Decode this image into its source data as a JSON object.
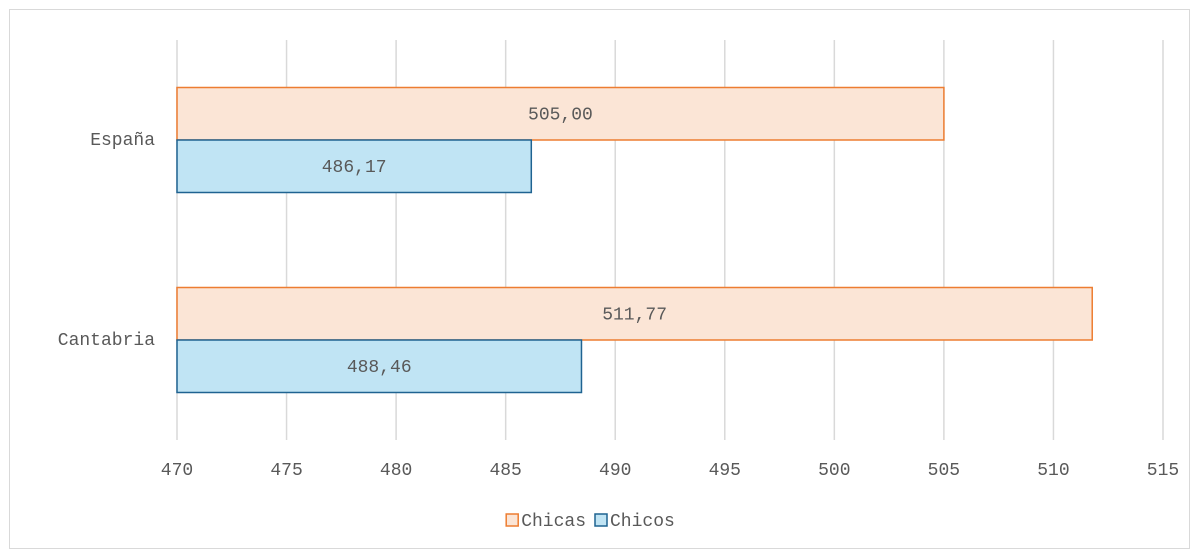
{
  "chart_data": {
    "type": "barh",
    "categories": [
      "España",
      "Cantabria"
    ],
    "series": [
      {
        "name": "Chicas",
        "color": "#ed7d31",
        "fill": "#fbe5d6",
        "values": [
          505.0,
          511.77
        ],
        "value_labels": [
          "505,00",
          "511,77"
        ]
      },
      {
        "name": "Chicos",
        "color": "#1f6391",
        "fill": "#c0e4f4",
        "values": [
          486.17,
          488.46
        ],
        "value_labels": [
          "486,17",
          "488,46"
        ]
      }
    ],
    "xlim": [
      470,
      515
    ],
    "xticks": [
      470,
      475,
      480,
      485,
      490,
      495,
      500,
      505,
      510,
      515
    ],
    "grid": true,
    "legend": "bottom"
  }
}
